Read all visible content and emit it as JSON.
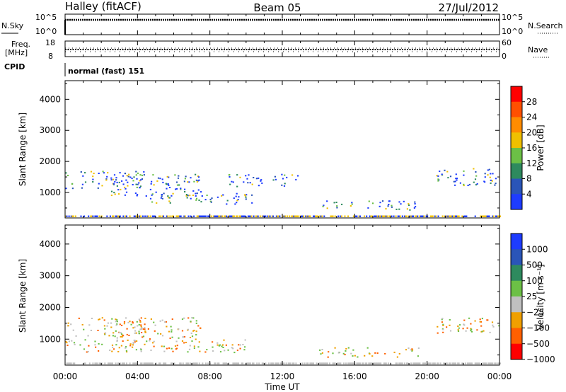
{
  "header": {
    "station": "Halley (fitACF)",
    "beam": "Beam 05",
    "date": "27/Jul/2012"
  },
  "strip_panels": {
    "nsky_label": "N.Sky",
    "nsky_ticks": [
      "10^5",
      "10^0"
    ],
    "nsearch_label": "N.Search",
    "nsearch_ticks": [
      "10^5",
      "10^0"
    ],
    "freq_label_1": "Freq.",
    "freq_label_2": "[MHz]",
    "freq_ticks": [
      "18",
      "8"
    ],
    "nave_label": "Nave",
    "nave_ticks": [
      "60",
      "0"
    ],
    "cpid_label": "CPID",
    "cpid_text": "normal (fast) 151"
  },
  "chart_data": [
    {
      "type": "heatmap",
      "name": "power",
      "ylabel": "Slant Range [km]",
      "yticks": [
        1000,
        2000,
        3000,
        4000
      ],
      "ylim": [
        180,
        4600
      ],
      "xlim": [
        0,
        24
      ],
      "colorbar_label": "Power [dB]",
      "colorbar_ticks": [
        "4",
        "8",
        "12",
        "16",
        "20",
        "24",
        "28"
      ],
      "colors": [
        "#1e3cff",
        "#2a55b8",
        "#2e8a5e",
        "#6cc046",
        "#f0c000",
        "#ff8c00",
        "#ff5000",
        "#ff0000"
      ],
      "scatter_regions": [
        {
          "t": [
            0.0,
            4.5
          ],
          "r": [
            1150,
            1700
          ]
        },
        {
          "t": [
            2.5,
            7.5
          ],
          "r": [
            900,
            1600
          ]
        },
        {
          "t": [
            4.5,
            10.5
          ],
          "r": [
            650,
            1000
          ]
        },
        {
          "t": [
            9.0,
            13.0
          ],
          "r": [
            1200,
            1600
          ]
        },
        {
          "t": [
            14.0,
            19.5
          ],
          "r": [
            450,
            750
          ]
        },
        {
          "t": [
            20.5,
            24.0
          ],
          "r": [
            1200,
            1800
          ]
        }
      ]
    },
    {
      "type": "heatmap",
      "name": "velocity",
      "ylabel": "Slant Range [km]",
      "yticks": [
        1000,
        2000,
        3000,
        4000
      ],
      "ylim": [
        180,
        4600
      ],
      "xlim": [
        0,
        24
      ],
      "colorbar_label": "Velocity [m s⁻¹]",
      "colorbar_ticks": [
        "1000",
        "500",
        "100",
        "25",
        "−25",
        "−100",
        "−500",
        "−1000"
      ],
      "colors": [
        "#1e3cff",
        "#2a55b8",
        "#2e8a5e",
        "#6cc046",
        "#c0c0c0",
        "#f0a000",
        "#ff6000",
        "#ff0000"
      ],
      "scatter_regions": [
        {
          "t": [
            0.0,
            4.5
          ],
          "r": [
            1100,
            1700
          ]
        },
        {
          "t": [
            2.5,
            7.5
          ],
          "r": [
            900,
            1700
          ]
        },
        {
          "t": [
            0.0,
            10.0
          ],
          "r": [
            600,
            1000
          ]
        },
        {
          "t": [
            14.0,
            19.5
          ],
          "r": [
            450,
            750
          ]
        },
        {
          "t": [
            20.5,
            24.0
          ],
          "r": [
            1200,
            1700
          ]
        }
      ]
    }
  ],
  "x_axis": {
    "ticks": [
      "00:00",
      "04:00",
      "08:00",
      "12:00",
      "16:00",
      "20:00",
      "00:00"
    ],
    "label": "Time UT"
  }
}
